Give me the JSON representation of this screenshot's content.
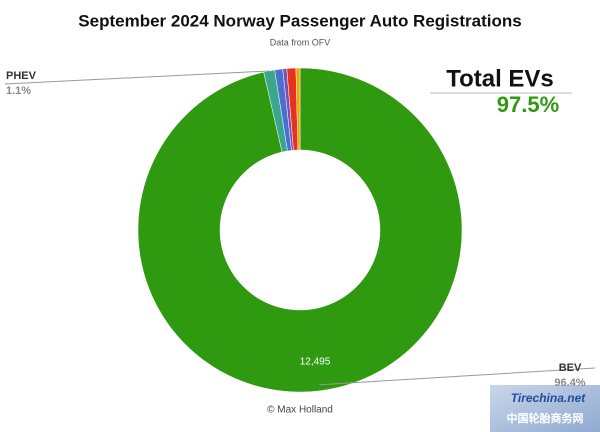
{
  "chart_data": {
    "type": "donut",
    "title": "September 2024 Norway Passenger Auto Registrations",
    "subtitle": "Data from OFV",
    "credit": "© Max Holland",
    "categories": [
      "BEV",
      "PHEV",
      null,
      null,
      null,
      null
    ],
    "values": [
      96.4,
      1.1,
      0.8,
      0.4,
      0.9,
      0.4
    ],
    "value_labels": [
      "96.4%",
      "1.1%",
      null,
      null,
      null,
      null
    ],
    "colors": [
      "#2f9a10",
      "#3aa68c",
      "#4a6fd0",
      "#7a4fb2",
      "#e5331f",
      "#f4a600"
    ],
    "counts": [
      12495,
      null,
      null,
      null,
      null,
      null
    ],
    "count_labels": [
      "12,495",
      null,
      null,
      null,
      null,
      null
    ],
    "total_label": "Total EVs",
    "total_value": "97.5%",
    "watermark": {
      "site": "Tirechina.net",
      "name": "中国轮胎商务网"
    }
  }
}
